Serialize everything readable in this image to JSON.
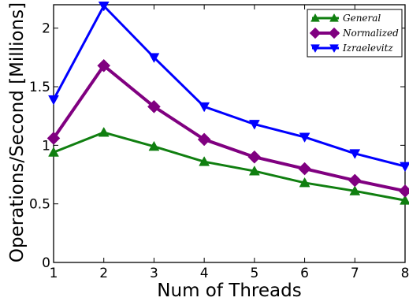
{
  "chart_data": {
    "type": "line",
    "xlabel": "Num of Threads",
    "ylabel": "Operations/Second [Millions]",
    "x": [
      1,
      2,
      3,
      4,
      5,
      6,
      7,
      8
    ],
    "xlim": [
      1,
      8
    ],
    "ylim": [
      0,
      2.2
    ],
    "xticks": [
      "1",
      "2",
      "3",
      "4",
      "5",
      "6",
      "7",
      "8"
    ],
    "yticks": [
      "0",
      "0.5",
      "1",
      "1.5",
      "2"
    ],
    "yticks_values": [
      0,
      0.5,
      1,
      1.5,
      2
    ],
    "grid": false,
    "legend_position": "top-right",
    "series": [
      {
        "name": "General",
        "color": "#107f10",
        "marker": "triangle-up",
        "values": [
          0.94,
          1.11,
          0.99,
          0.86,
          0.78,
          0.68,
          0.61,
          0.53
        ]
      },
      {
        "name": "Normalized",
        "color": "#800080",
        "marker": "diamond",
        "values": [
          1.06,
          1.68,
          1.33,
          1.05,
          0.9,
          0.8,
          0.7,
          0.61
        ]
      },
      {
        "name": "Izraelevitz",
        "color": "#0000ff",
        "marker": "triangle-down",
        "values": [
          1.39,
          2.19,
          1.75,
          1.33,
          1.18,
          1.07,
          0.93,
          0.82
        ]
      }
    ]
  }
}
